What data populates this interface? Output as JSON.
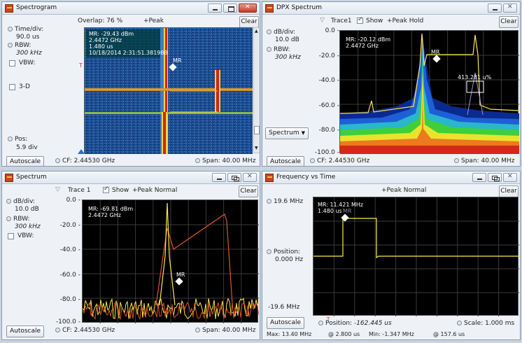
{
  "spectrogram": {
    "title": "Spectrogram",
    "overlap": "Overlap: 76 %",
    "peak": "+Peak",
    "clear": "Clear",
    "timediv_label": "Time/div:",
    "timediv_value": "90.0 us",
    "rbw_label": "RBW:",
    "rbw_value": "300 kHz",
    "vbw_label": "VBW:",
    "three_d": "3-D",
    "pos_label": "Pos:",
    "pos_value": "5.9 div",
    "autoscale": "Autoscale",
    "cf": "CF:  2.44530 GHz",
    "span": "Span:  40.00 MHz",
    "readout": [
      "MR: -29.43 dBm",
      "2.4472 GHz",
      "1.480 us",
      "10/18/2014 2:31:51.381988"
    ],
    "marker": "MR"
  },
  "dpx": {
    "title": "DPX Spectrum",
    "trace": "Trace1",
    "show": "Show",
    "peakhold": "+Peak Hold",
    "clear": "Clear",
    "dbdiv_label": "dB/div:",
    "dbdiv_value": "10.0 dB",
    "rbw_label": "RBW:",
    "rbw_value": "300 kHz",
    "yticks": [
      "0.0 -",
      "-20.0 -",
      "-40.0 -",
      "-60.0 -",
      "-80.0 -",
      "-100.0 -"
    ],
    "dropdown": "Spectrum",
    "autoscale": "Autoscale",
    "cf": "CF:  2.44530 GHz",
    "span": "Span:  40.00 MHz",
    "readout": [
      "MR: -20.12 dBm",
      "2.4472 GHz"
    ],
    "marker": "MR",
    "box_label": "413.281 u%"
  },
  "spectrum": {
    "title": "Spectrum",
    "trace": "Trace 1",
    "show": "Show",
    "peaknormal": "+Peak Normal",
    "clear": "Clear",
    "dbdiv_label": "dB/div:",
    "dbdiv_value": "10.0 dB",
    "rbw_label": "RBW:",
    "rbw_value": "300 kHz",
    "vbw_label": "VBW:",
    "yticks": [
      "0.0 -",
      "-20.0 -",
      "-40.0 -",
      "-60.0 -",
      "-80.0 -",
      "-100.0 -"
    ],
    "autoscale": "Autoscale",
    "cf": "CF:  2.44530 GHz",
    "span": "Span:  40.00 MHz",
    "readout": [
      "MR: -69.81 dBm",
      "2.4472 GHz"
    ],
    "marker": "MR"
  },
  "fvt": {
    "title": "Frequency vs Time",
    "peaknormal": "+Peak Normal",
    "clear": "Clear",
    "top": "19.6 MHz",
    "pos_label": "Position:",
    "pos_value": "0.000 Hz",
    "bottom": "-19.6 MHz",
    "autoscale": "Autoscale",
    "position": "Position:",
    "position_value": "-162.445 us",
    "scale": "Scale:  1.000 ms",
    "max": "Max:   13.40 MHz",
    "at1": "@ 2.800 us",
    "min": "Min:   -1.347 MHz",
    "at2": "@ 157.6 us",
    "readout": [
      "MR: 11.421 MHz",
      "1.480 us"
    ],
    "marker": "MR"
  }
}
